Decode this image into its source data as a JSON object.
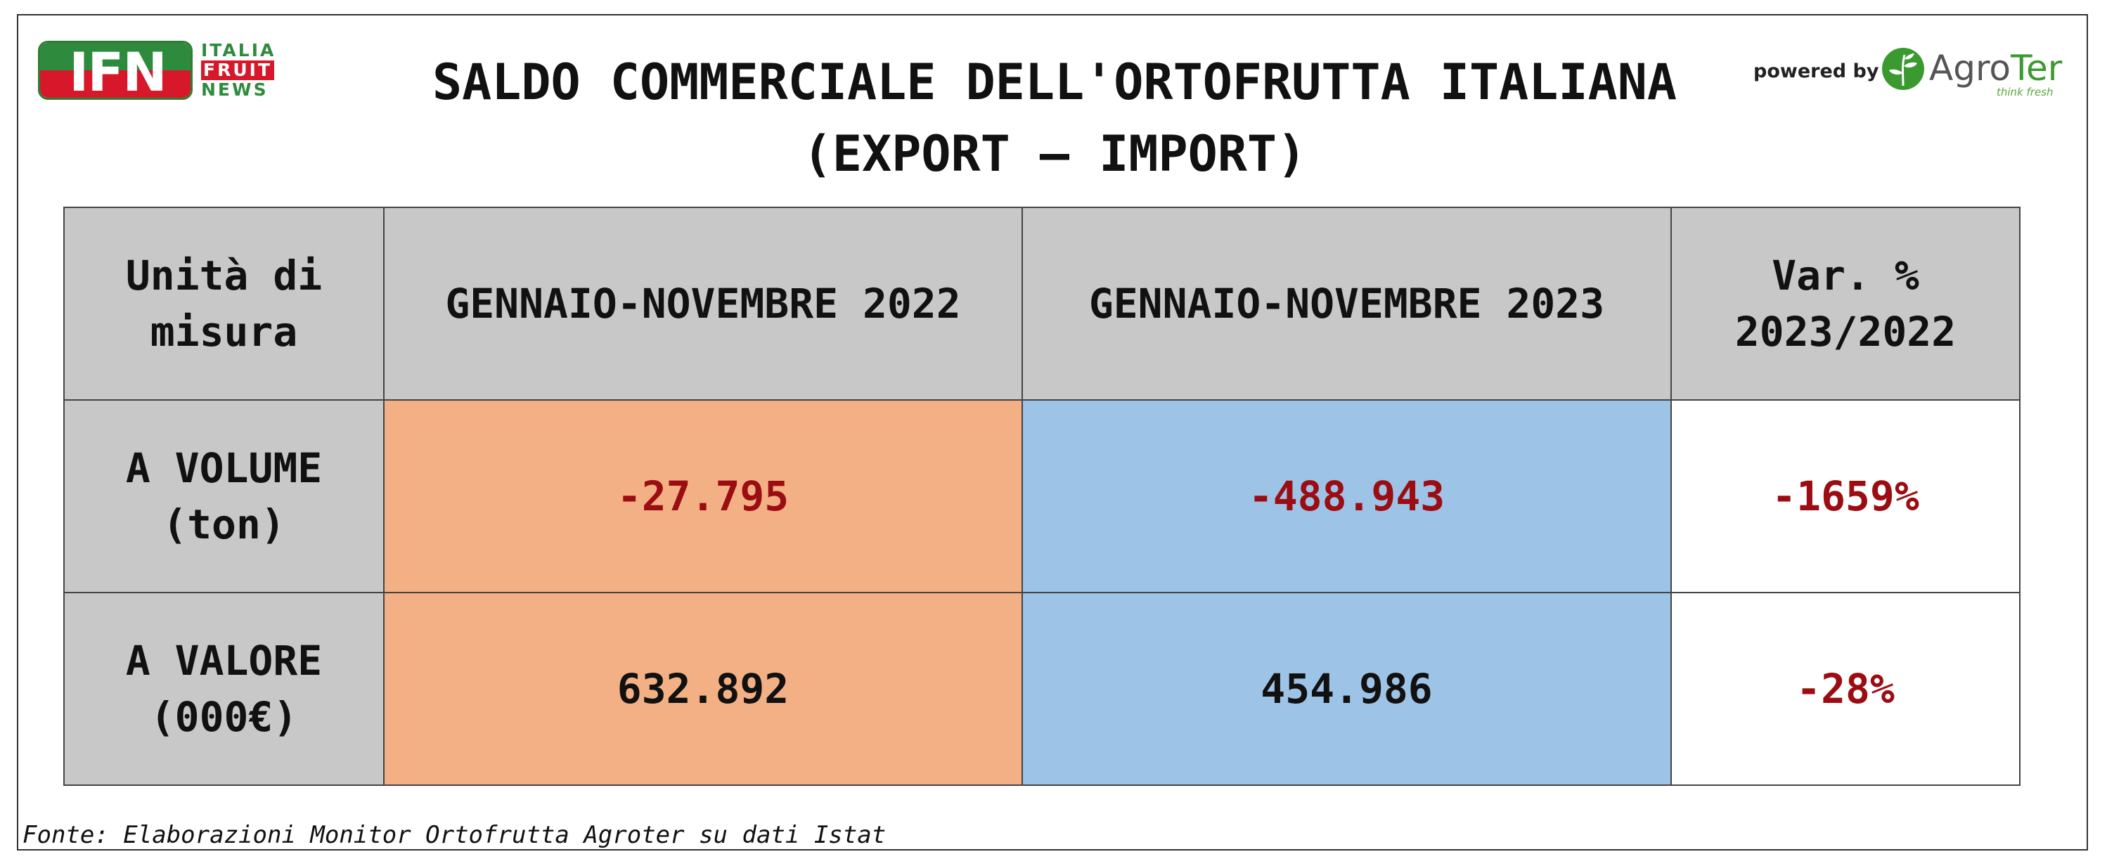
{
  "logo_ifn": {
    "letters": "IFN",
    "line1": "ITALIA",
    "line2": "FRUIT",
    "line3": "NEWS",
    "colors": {
      "green": "#2e8b3e",
      "red": "#d7182a"
    }
  },
  "title": {
    "line1": "SALDO COMMERCIALE DELL'ORTOFRUTTA ITALIANA",
    "line2": "(EXPORT – IMPORT)"
  },
  "sponsor": {
    "powered_by": "powered by",
    "brand_a": "Agro",
    "brand_b": "Ter",
    "tagline": "think fresh",
    "icon": "agroter-leaf-icon"
  },
  "table": {
    "headers": {
      "unit_line1": "Unità di",
      "unit_line2": "misura",
      "col_2022": "GENNAIO-NOVEMBRE 2022",
      "col_2023": "GENNAIO-NOVEMBRE 2023",
      "var_line1": "Var. %",
      "var_line2": "2023/2022"
    },
    "rows": [
      {
        "label_line1": "A VOLUME",
        "label_line2": "(ton)",
        "v2022": "-27.795",
        "v2023": "-488.943",
        "var": "-1659%"
      },
      {
        "label_line1": "A VALORE",
        "label_line2": "(000€)",
        "v2022": "632.892",
        "v2023": "454.986",
        "var": "-28%"
      }
    ],
    "colors": {
      "header_bg": "#c8c8c8",
      "col_2022_bg": "#f4b085",
      "col_2023_bg": "#9dc3e6",
      "negative_text": "#9b0d12"
    }
  },
  "source": "Fonte: Elaborazioni Monitor Ortofrutta Agroter su dati Istat"
}
